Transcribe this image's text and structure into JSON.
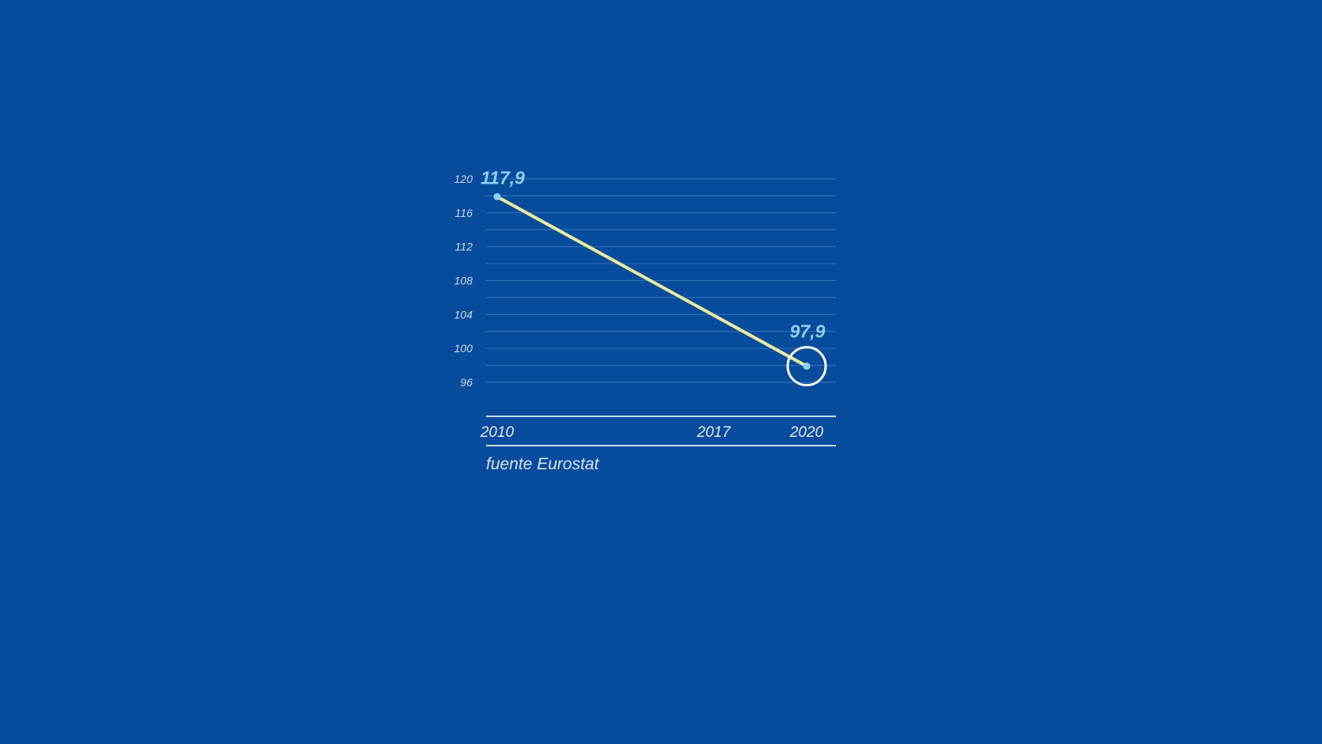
{
  "chart_data": {
    "type": "line",
    "x": [
      "2010",
      "2020"
    ],
    "series": [
      {
        "values": [
          117.9,
          97.9
        ]
      }
    ],
    "data_labels": [
      "117,9",
      "97,9"
    ],
    "highlighted_point": "2020",
    "y_ticks": [
      "120",
      "116",
      "112",
      "108",
      "104",
      "100",
      "96"
    ],
    "x_ticks": [
      "2010",
      "2017",
      "2020"
    ],
    "ylim": [
      96,
      120
    ],
    "xlim": [
      2010,
      2020
    ],
    "grid": true,
    "source": "fuente Eurostat"
  },
  "colors": {
    "background": "#074b9c",
    "line": "#e9ec9f",
    "gridline": "#2f6fb8",
    "point": "#8fd0f5",
    "highlight_ring": "#ffffff",
    "axis": "#c9dcf3"
  }
}
